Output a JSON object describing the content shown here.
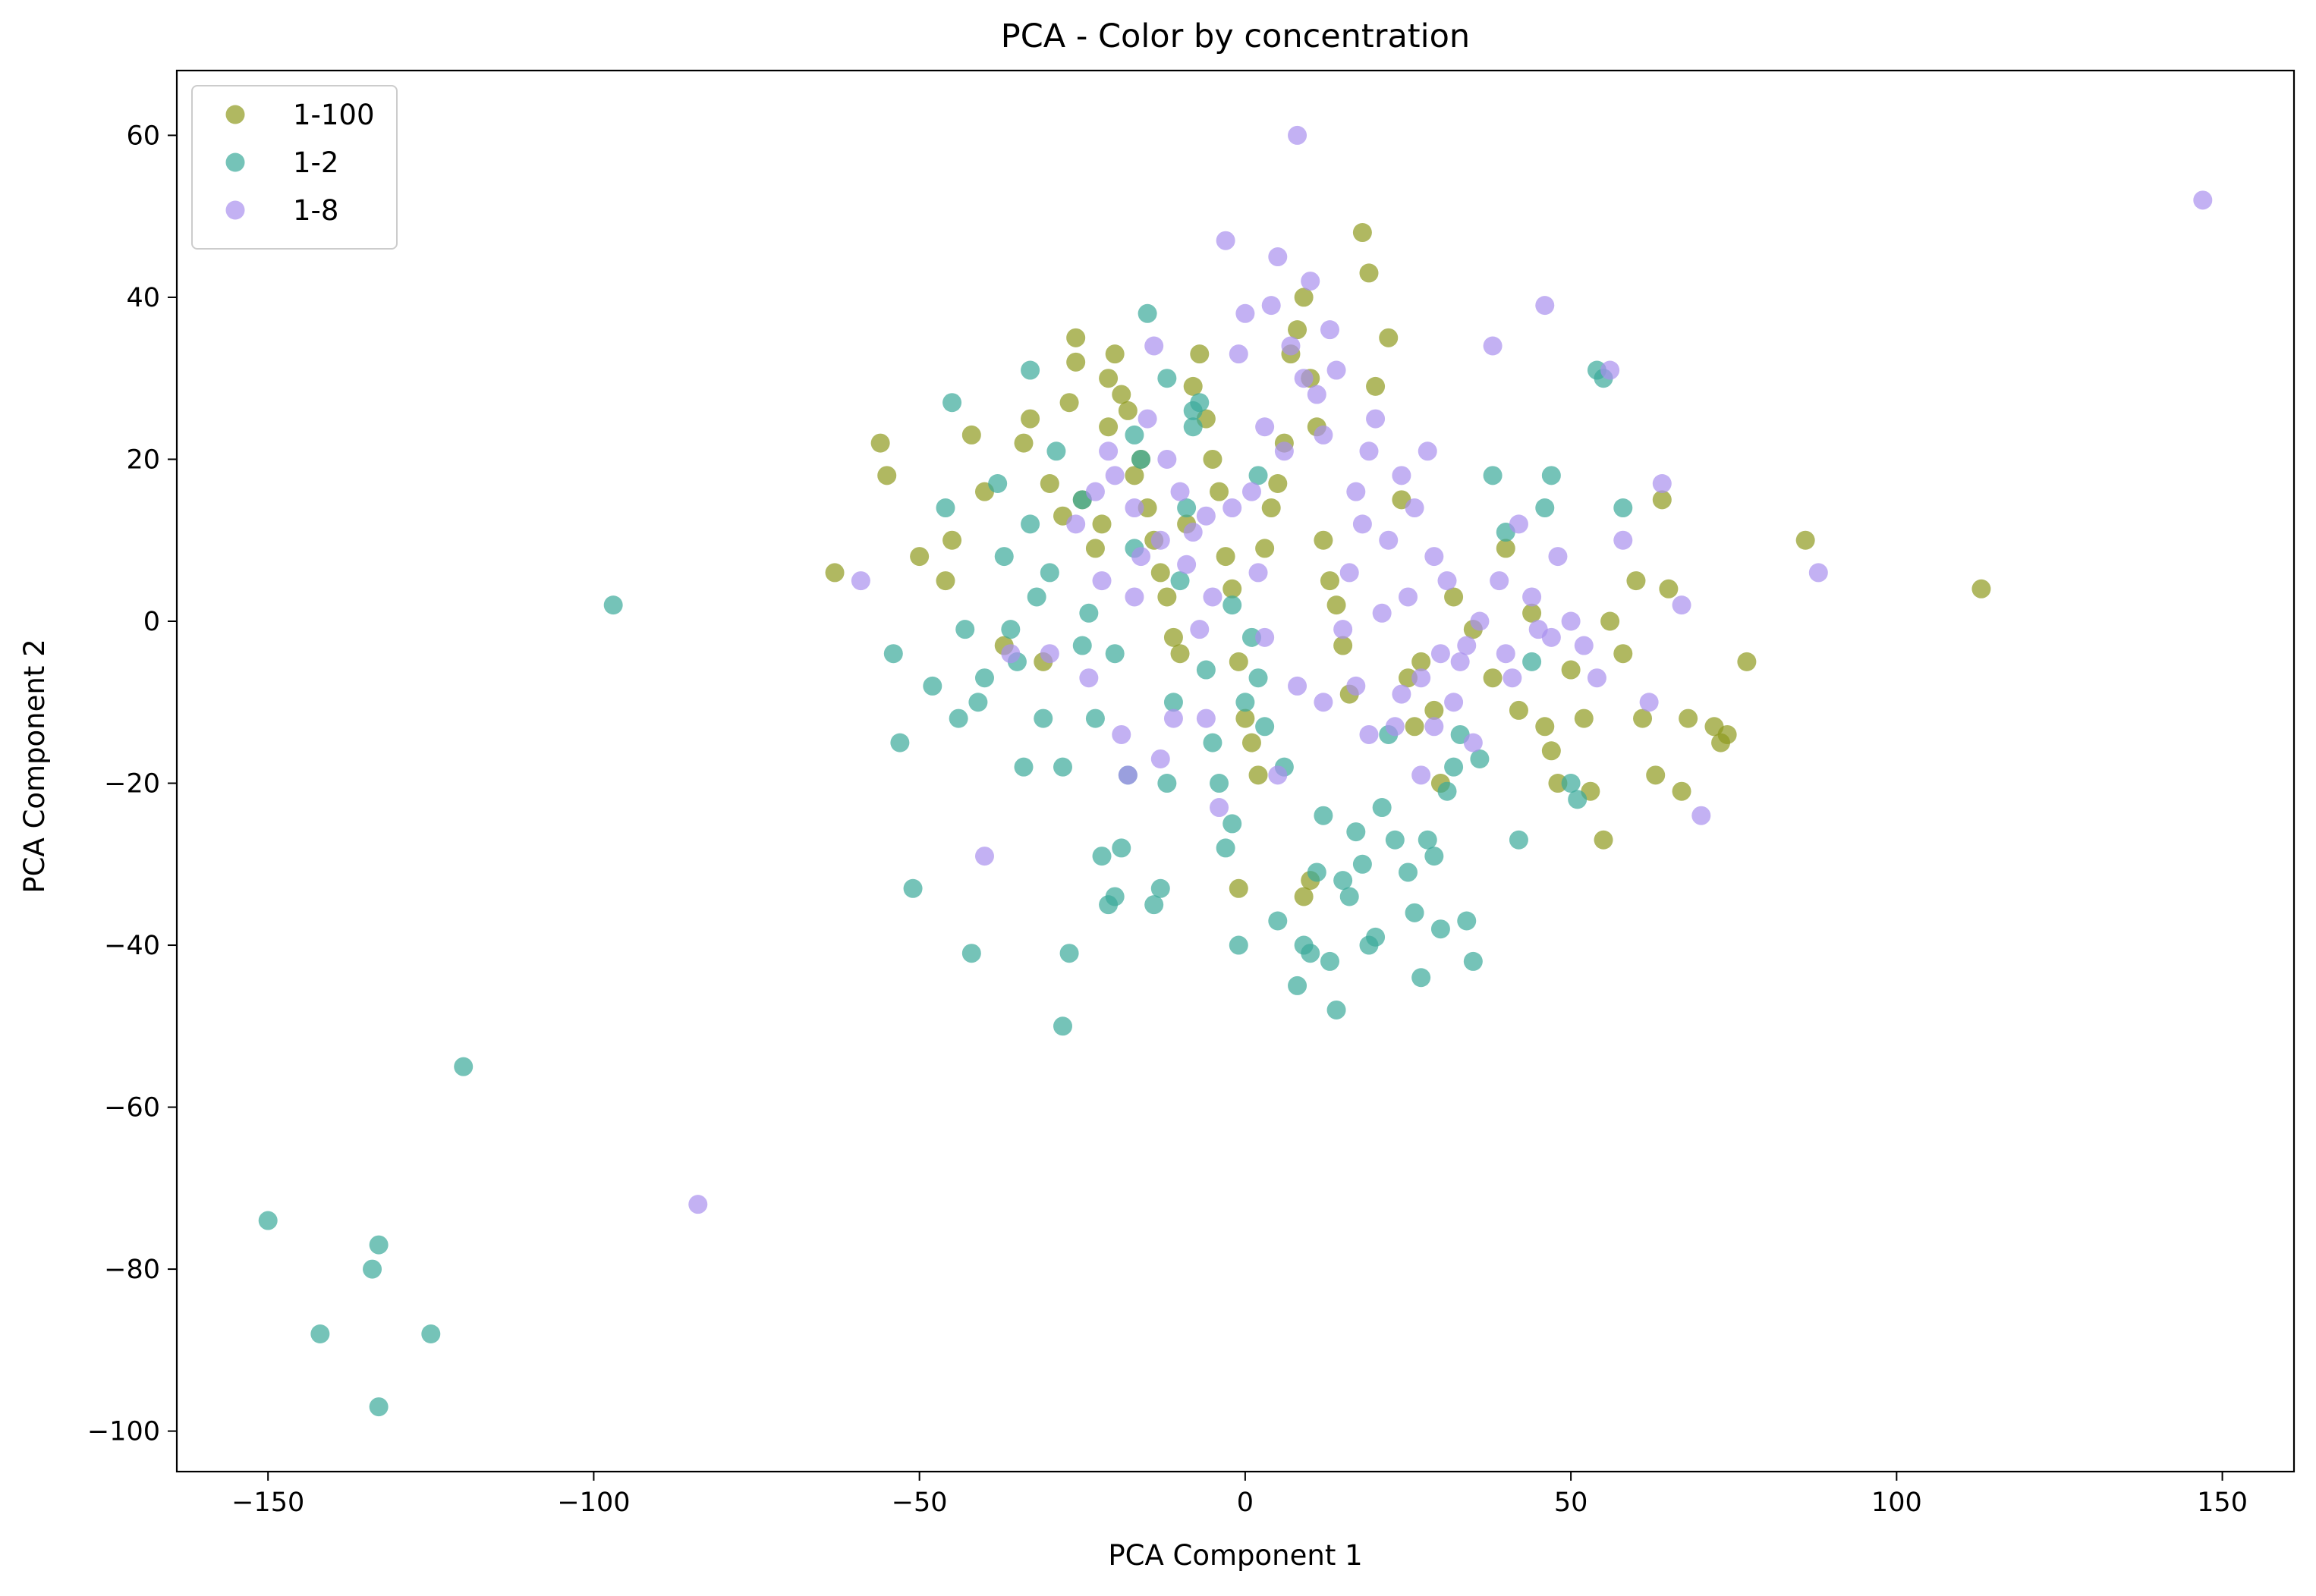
{
  "chart_data": {
    "type": "scatter",
    "title": "PCA - Color by concentration",
    "xlabel": "PCA Component 1",
    "ylabel": "PCA Component 2",
    "xlim": [
      -164,
      161
    ],
    "ylim": [
      -105,
      68
    ],
    "xticks": [
      -150,
      -100,
      -50,
      0,
      50,
      100,
      150
    ],
    "yticks": [
      -100,
      -80,
      -60,
      -40,
      -20,
      0,
      20,
      40,
      60
    ],
    "grid": false,
    "legend_position": "top-left",
    "series": [
      {
        "name": "1-100",
        "color": "#8f9a1e",
        "points": [
          [
            -63,
            6
          ],
          [
            -56,
            22
          ],
          [
            -55,
            18
          ],
          [
            -50,
            8
          ],
          [
            -46,
            5
          ],
          [
            -45,
            10
          ],
          [
            -42,
            23
          ],
          [
            -40,
            16
          ],
          [
            -37,
            -3
          ],
          [
            -34,
            22
          ],
          [
            -33,
            25
          ],
          [
            -31,
            -5
          ],
          [
            -30,
            17
          ],
          [
            -28,
            13
          ],
          [
            -27,
            27
          ],
          [
            -26,
            32
          ],
          [
            -25,
            15
          ],
          [
            -23,
            9
          ],
          [
            -22,
            12
          ],
          [
            -21,
            24
          ],
          [
            -21,
            30
          ],
          [
            -20,
            33
          ],
          [
            -19,
            28
          ],
          [
            -18,
            26
          ],
          [
            -17,
            18
          ],
          [
            -16,
            20
          ],
          [
            -15,
            14
          ],
          [
            -14,
            10
          ],
          [
            -13,
            6
          ],
          [
            -12,
            3
          ],
          [
            -11,
            -2
          ],
          [
            -10,
            -4
          ],
          [
            -9,
            12
          ],
          [
            -8,
            29
          ],
          [
            -7,
            33
          ],
          [
            -6,
            25
          ],
          [
            -5,
            20
          ],
          [
            -4,
            16
          ],
          [
            -3,
            8
          ],
          [
            -2,
            4
          ],
          [
            -1,
            -5
          ],
          [
            0,
            -12
          ],
          [
            1,
            -15
          ],
          [
            2,
            -19
          ],
          [
            3,
            9
          ],
          [
            4,
            14
          ],
          [
            5,
            17
          ],
          [
            6,
            22
          ],
          [
            7,
            33
          ],
          [
            8,
            36
          ],
          [
            9,
            40
          ],
          [
            10,
            30
          ],
          [
            11,
            24
          ],
          [
            12,
            10
          ],
          [
            13,
            5
          ],
          [
            14,
            2
          ],
          [
            15,
            -3
          ],
          [
            16,
            -9
          ],
          [
            18,
            48
          ],
          [
            19,
            43
          ],
          [
            20,
            29
          ],
          [
            22,
            35
          ],
          [
            24,
            15
          ],
          [
            25,
            -7
          ],
          [
            26,
            -13
          ],
          [
            27,
            -5
          ],
          [
            29,
            -11
          ],
          [
            30,
            -20
          ],
          [
            32,
            3
          ],
          [
            35,
            -1
          ],
          [
            38,
            -7
          ],
          [
            40,
            9
          ],
          [
            42,
            -11
          ],
          [
            44,
            1
          ],
          [
            46,
            -13
          ],
          [
            47,
            -16
          ],
          [
            48,
            -20
          ],
          [
            50,
            -6
          ],
          [
            52,
            -12
          ],
          [
            53,
            -21
          ],
          [
            55,
            -27
          ],
          [
            56,
            0
          ],
          [
            58,
            -4
          ],
          [
            60,
            5
          ],
          [
            61,
            -12
          ],
          [
            63,
            -19
          ],
          [
            64,
            15
          ],
          [
            65,
            4
          ],
          [
            67,
            -21
          ],
          [
            68,
            -12
          ],
          [
            72,
            -13
          ],
          [
            73,
            -15
          ],
          [
            74,
            -14
          ],
          [
            77,
            -5
          ],
          [
            86,
            10
          ],
          [
            113,
            4
          ],
          [
            -1,
            -33
          ],
          [
            9,
            -34
          ],
          [
            10,
            -32
          ],
          [
            -26,
            35
          ]
        ]
      },
      {
        "name": "1-2",
        "color": "#3aaa9a",
        "points": [
          [
            -150,
            -74
          ],
          [
            -142,
            -88
          ],
          [
            -134,
            -80
          ],
          [
            -133,
            -77
          ],
          [
            -133,
            -97
          ],
          [
            -125,
            -88
          ],
          [
            -120,
            -55
          ],
          [
            -97,
            2
          ],
          [
            -54,
            -4
          ],
          [
            -53,
            -15
          ],
          [
            -51,
            -33
          ],
          [
            -48,
            -8
          ],
          [
            -46,
            14
          ],
          [
            -44,
            -12
          ],
          [
            -43,
            -1
          ],
          [
            -42,
            -41
          ],
          [
            -41,
            -10
          ],
          [
            -40,
            -7
          ],
          [
            -38,
            17
          ],
          [
            -37,
            8
          ],
          [
            -36,
            -1
          ],
          [
            -35,
            -5
          ],
          [
            -34,
            -18
          ],
          [
            -33,
            12
          ],
          [
            -32,
            3
          ],
          [
            -31,
            -12
          ],
          [
            -30,
            6
          ],
          [
            -29,
            21
          ],
          [
            -28,
            -18
          ],
          [
            -28,
            -50
          ],
          [
            -27,
            -41
          ],
          [
            -25,
            15
          ],
          [
            -24,
            1
          ],
          [
            -23,
            -12
          ],
          [
            -22,
            -29
          ],
          [
            -21,
            -35
          ],
          [
            -20,
            -34
          ],
          [
            -19,
            -28
          ],
          [
            -18,
            -19
          ],
          [
            -17,
            9
          ],
          [
            -16,
            20
          ],
          [
            -15,
            38
          ],
          [
            -14,
            -35
          ],
          [
            -13,
            -33
          ],
          [
            -12,
            -20
          ],
          [
            -11,
            -10
          ],
          [
            -10,
            5
          ],
          [
            -9,
            14
          ],
          [
            -8,
            24
          ],
          [
            -7,
            27
          ],
          [
            -6,
            -6
          ],
          [
            -5,
            -15
          ],
          [
            -4,
            -20
          ],
          [
            -3,
            -28
          ],
          [
            -2,
            -25
          ],
          [
            -1,
            -40
          ],
          [
            0,
            -10
          ],
          [
            1,
            -2
          ],
          [
            2,
            18
          ],
          [
            3,
            -13
          ],
          [
            5,
            -37
          ],
          [
            6,
            -18
          ],
          [
            8,
            -45
          ],
          [
            9,
            -40
          ],
          [
            10,
            -41
          ],
          [
            11,
            -31
          ],
          [
            12,
            -24
          ],
          [
            13,
            -42
          ],
          [
            14,
            -48
          ],
          [
            15,
            -32
          ],
          [
            16,
            -34
          ],
          [
            17,
            -26
          ],
          [
            18,
            -30
          ],
          [
            19,
            -40
          ],
          [
            20,
            -39
          ],
          [
            21,
            -23
          ],
          [
            22,
            -14
          ],
          [
            23,
            -27
          ],
          [
            25,
            -31
          ],
          [
            26,
            -36
          ],
          [
            27,
            -44
          ],
          [
            28,
            -27
          ],
          [
            29,
            -29
          ],
          [
            30,
            -38
          ],
          [
            31,
            -21
          ],
          [
            32,
            -18
          ],
          [
            33,
            -14
          ],
          [
            34,
            -37
          ],
          [
            35,
            -42
          ],
          [
            36,
            -17
          ],
          [
            38,
            18
          ],
          [
            40,
            11
          ],
          [
            42,
            -27
          ],
          [
            44,
            -5
          ],
          [
            46,
            14
          ],
          [
            47,
            18
          ],
          [
            50,
            -20
          ],
          [
            51,
            -22
          ],
          [
            54,
            31
          ],
          [
            55,
            30
          ],
          [
            58,
            14
          ],
          [
            -45,
            27
          ],
          [
            -33,
            31
          ],
          [
            -17,
            23
          ],
          [
            -12,
            30
          ],
          [
            -8,
            26
          ],
          [
            -25,
            -3
          ],
          [
            -20,
            -4
          ],
          [
            -2,
            2
          ],
          [
            2,
            -7
          ]
        ]
      },
      {
        "name": "1-8",
        "color": "#a990ee",
        "points": [
          [
            -84,
            -72
          ],
          [
            -59,
            5
          ],
          [
            -40,
            -29
          ],
          [
            -30,
            -4
          ],
          [
            -26,
            12
          ],
          [
            -24,
            -7
          ],
          [
            -23,
            16
          ],
          [
            -22,
            5
          ],
          [
            -21,
            21
          ],
          [
            -20,
            18
          ],
          [
            -19,
            -14
          ],
          [
            -18,
            -19
          ],
          [
            -17,
            14
          ],
          [
            -16,
            8
          ],
          [
            -15,
            25
          ],
          [
            -14,
            34
          ],
          [
            -13,
            -17
          ],
          [
            -12,
            20
          ],
          [
            -11,
            -12
          ],
          [
            -10,
            16
          ],
          [
            -9,
            7
          ],
          [
            -8,
            11
          ],
          [
            -7,
            -1
          ],
          [
            -6,
            13
          ],
          [
            -5,
            3
          ],
          [
            -4,
            -23
          ],
          [
            -3,
            47
          ],
          [
            -2,
            14
          ],
          [
            -1,
            33
          ],
          [
            0,
            38
          ],
          [
            1,
            16
          ],
          [
            2,
            6
          ],
          [
            3,
            24
          ],
          [
            4,
            39
          ],
          [
            5,
            45
          ],
          [
            6,
            21
          ],
          [
            7,
            34
          ],
          [
            8,
            60
          ],
          [
            9,
            30
          ],
          [
            10,
            42
          ],
          [
            11,
            28
          ],
          [
            12,
            23
          ],
          [
            13,
            36
          ],
          [
            14,
            31
          ],
          [
            15,
            -1
          ],
          [
            16,
            6
          ],
          [
            17,
            16
          ],
          [
            18,
            12
          ],
          [
            19,
            21
          ],
          [
            20,
            25
          ],
          [
            21,
            1
          ],
          [
            22,
            10
          ],
          [
            23,
            -13
          ],
          [
            24,
            18
          ],
          [
            25,
            3
          ],
          [
            26,
            14
          ],
          [
            27,
            -7
          ],
          [
            28,
            21
          ],
          [
            29,
            8
          ],
          [
            30,
            -4
          ],
          [
            31,
            5
          ],
          [
            32,
            -10
          ],
          [
            34,
            -3
          ],
          [
            36,
            0
          ],
          [
            38,
            34
          ],
          [
            39,
            5
          ],
          [
            40,
            -4
          ],
          [
            42,
            12
          ],
          [
            44,
            3
          ],
          [
            45,
            -1
          ],
          [
            46,
            39
          ],
          [
            47,
            -2
          ],
          [
            48,
            8
          ],
          [
            50,
            0
          ],
          [
            52,
            -3
          ],
          [
            54,
            -7
          ],
          [
            56,
            31
          ],
          [
            58,
            10
          ],
          [
            62,
            -10
          ],
          [
            64,
            17
          ],
          [
            67,
            2
          ],
          [
            70,
            -24
          ],
          [
            88,
            6
          ],
          [
            147,
            52
          ],
          [
            -36,
            -4
          ],
          [
            -13,
            10
          ],
          [
            -6,
            -12
          ],
          [
            8,
            -8
          ],
          [
            12,
            -10
          ],
          [
            19,
            -14
          ],
          [
            27,
            -19
          ],
          [
            33,
            -5
          ],
          [
            41,
            -7
          ],
          [
            -17,
            3
          ],
          [
            3,
            -2
          ],
          [
            17,
            -8
          ],
          [
            24,
            -9
          ],
          [
            29,
            -13
          ],
          [
            35,
            -15
          ],
          [
            5,
            -19
          ]
        ]
      }
    ]
  }
}
